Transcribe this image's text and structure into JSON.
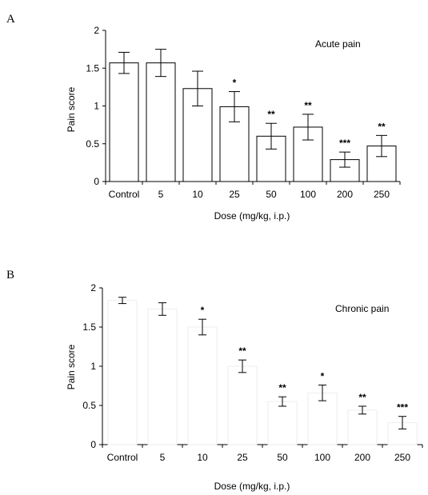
{
  "chart_data": [
    {
      "panel": "A",
      "type": "bar",
      "inset_text": "Acute pain",
      "xlabel": "Dose (mg/kg, i.p.)",
      "ylabel": "Pain score",
      "categories": [
        "Control",
        "5",
        "10",
        "25",
        "50",
        "100",
        "200",
        "250"
      ],
      "values": [
        1.57,
        1.57,
        1.23,
        0.99,
        0.6,
        0.72,
        0.29,
        0.47
      ],
      "errors": [
        0.14,
        0.18,
        0.23,
        0.2,
        0.17,
        0.17,
        0.1,
        0.14
      ],
      "significance": [
        "",
        "",
        "",
        "*",
        "**",
        "**",
        "***",
        "**"
      ],
      "ylim": [
        0,
        2
      ],
      "yticks": [
        "0",
        "0.5",
        "1",
        "1.5",
        "2"
      ],
      "style": "outlined"
    },
    {
      "panel": "B",
      "type": "bar",
      "inset_text": "Chronic pain",
      "xlabel": "Dose (mg/kg, i.p.)",
      "ylabel": "Pain score",
      "categories": [
        "Control",
        "5",
        "10",
        "25",
        "50",
        "100",
        "200",
        "250"
      ],
      "values": [
        1.84,
        1.73,
        1.5,
        1.0,
        0.55,
        0.66,
        0.44,
        0.28
      ],
      "errors": [
        0.04,
        0.08,
        0.1,
        0.08,
        0.06,
        0.1,
        0.05,
        0.08
      ],
      "significance": [
        "",
        "",
        "*",
        "**",
        "**",
        "*",
        "**",
        "***"
      ],
      "ylim": [
        0,
        2
      ],
      "yticks": [
        "0",
        "0.5",
        "1",
        "1.5",
        "2"
      ],
      "style": "faint"
    }
  ]
}
